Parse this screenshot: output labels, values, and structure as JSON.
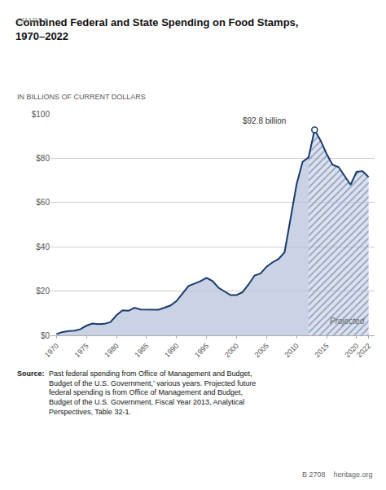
{
  "chart_data": {
    "type": "area",
    "chart_label": "CHART 1",
    "title": "Combined Federal and State Spending on Food Stamps,\n1970–2022",
    "subtitle": "IN BILLIONS OF CURRENT DOLLARS",
    "source_label": "Source:",
    "source": "Past federal spending from Office of Management and Budget, \nBudget of the U.S. Government,’ various years. Projected future\nfederal spending is from Office of Management and Budget,\nBudget of the U.S. Government, Fiscal Year 2013, Analytical\nPerspectives, Table 32-1.",
    "footer": "B 2708    heritage.org",
    "peak_annotation": {
      "text": "$92.8 billion",
      "x": 2013,
      "y": 92.8
    },
    "projected_label": {
      "text": "Projected",
      "x": 2018.5,
      "y": 3.5
    },
    "projected_start": 2012,
    "x": [
      1970,
      1971,
      1972,
      1973,
      1974,
      1975,
      1976,
      1977,
      1978,
      1979,
      1980,
      1981,
      1982,
      1983,
      1984,
      1985,
      1986,
      1987,
      1988,
      1989,
      1990,
      1991,
      1992,
      1993,
      1994,
      1995,
      1996,
      1997,
      1998,
      1999,
      2000,
      2001,
      2002,
      2003,
      2004,
      2005,
      2006,
      2007,
      2008,
      2009,
      2010,
      2011,
      2012,
      2013,
      2014,
      2015,
      2016,
      2017,
      2018,
      2019,
      2020,
      2021,
      2022
    ],
    "values": [
      0.6,
      1.5,
      1.9,
      2.1,
      2.8,
      4.4,
      5.3,
      5.1,
      5.2,
      6.0,
      9.1,
      11.3,
      11.1,
      12.5,
      11.7,
      11.7,
      11.6,
      11.6,
      12.5,
      13.5,
      15.5,
      18.9,
      22.3,
      23.4,
      24.5,
      26.0,
      24.5,
      21.5,
      19.8,
      18.2,
      18.2,
      19.5,
      23.0,
      27.0,
      28.0,
      31.0,
      33.0,
      34.5,
      37.5,
      53.6,
      68.2,
      78.4,
      80.4,
      92.8,
      88.0,
      82.0,
      77.0,
      76.0,
      72.0,
      68.0,
      73.9,
      74.2,
      71.5
    ],
    "color": "#1a3a6b",
    "fill_color": "#b8c4dc",
    "hatch_color": "#8899bb",
    "xlim": [
      1969,
      2023
    ],
    "xticks": [
      1970,
      1975,
      1980,
      1985,
      1990,
      1995,
      2000,
      2005,
      2010,
      2015,
      2020,
      2022
    ],
    "ylim": [
      0,
      100
    ],
    "yticks": [
      {
        "value": 0,
        "label": "$0"
      },
      {
        "value": 20,
        "label": "$20"
      },
      {
        "value": 40,
        "label": "$40"
      },
      {
        "value": 60,
        "label": "$60"
      },
      {
        "value": 80,
        "label": "$80"
      },
      {
        "value": 100,
        "label": "$100"
      }
    ],
    "grid": true
  }
}
